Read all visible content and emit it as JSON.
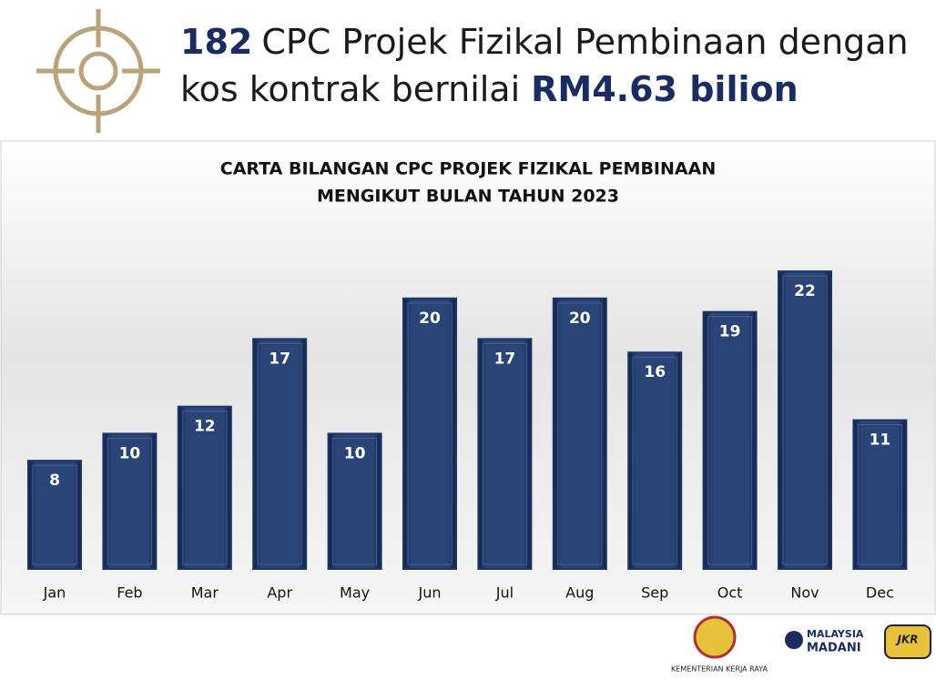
{
  "header": {
    "count": "182",
    "line1": "CPC Projek Fizikal Pembinaan dengan",
    "line2": "kos kontrak bernilai",
    "amount": "RM4.63 bilion"
  },
  "chart_data": {
    "type": "bar",
    "title": [
      "CARTA BILANGAN CPC PROJEK FIZIKAL PEMBINAAN",
      "MENGIKUT BULAN  TAHUN 2023"
    ],
    "categories": [
      "Jan",
      "Feb",
      "Mar",
      "Apr",
      "May",
      "Jun",
      "Jul",
      "Aug",
      "Sep",
      "Oct",
      "Nov",
      "Dec"
    ],
    "values": [
      8,
      10,
      12,
      17,
      10,
      20,
      17,
      20,
      16,
      19,
      22,
      11
    ],
    "color": "#1f3566"
  },
  "footer": {
    "ministry": "KEMENTERIAN KERJA RAYA",
    "madani1": "MALAYSIA",
    "madani2": "MADANI",
    "jkr": "JKR"
  }
}
